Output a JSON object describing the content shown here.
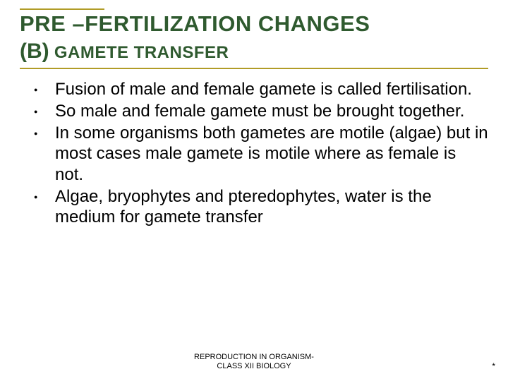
{
  "title": {
    "main": "PRE –FERTILIZATION CHANGES",
    "sub_paren": "(B)",
    "sub_rest": " GAMETE TRANSFER"
  },
  "bullets": [
    "Fusion of male and female gamete is called fertilisation.",
    "So male and female gamete must be brought together.",
    "In some organisms both gametes are motile (algae) but in most cases male gamete is motile where as female is not.",
    "Algae, bryophytes and pteredophytes, water is the medium for gamete transfer"
  ],
  "footer": {
    "line1": "REPRODUCTION IN ORGANISM-",
    "line2": "CLASS XII BIOLOGY"
  },
  "page_mark": "*",
  "colors": {
    "title_color": "#2f5a2f",
    "rule_color": "#b19c27",
    "text_color": "#000000",
    "background": "#ffffff"
  }
}
